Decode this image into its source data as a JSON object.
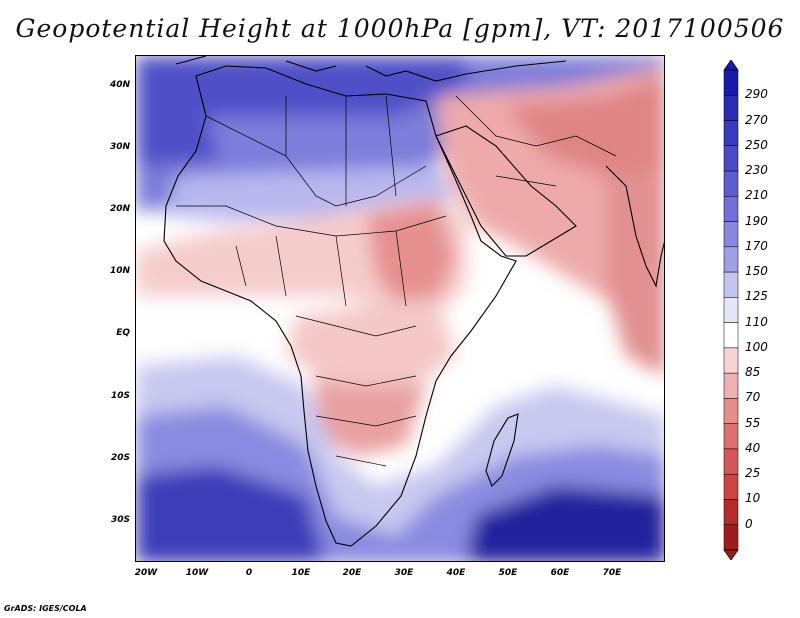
{
  "title": "Geopotential Height at 1000hPa [gpm], VT: 2017100506",
  "footer": "GrADS: IGES/COLA",
  "axes": {
    "y_ticks": [
      "40N",
      "30N",
      "20N",
      "10N",
      "EQ",
      "10S",
      "20S",
      "30S"
    ],
    "x_ticks": [
      "20W",
      "10W",
      "0",
      "10E",
      "20E",
      "30E",
      "40E",
      "50E",
      "60E",
      "70E"
    ]
  },
  "colorbar": {
    "levels": [
      "290",
      "270",
      "250",
      "230",
      "210",
      "190",
      "170",
      "150",
      "125",
      "110",
      "100",
      "85",
      "70",
      "55",
      "40",
      "25",
      "10",
      "0"
    ],
    "colors": [
      "#1a1aa8",
      "#2b2bb4",
      "#3a3abf",
      "#4b4bc8",
      "#5d5dd0",
      "#7070d8",
      "#8787df",
      "#a0a0e7",
      "#c4c4f0",
      "#e6e6f8",
      "#ffffff",
      "#f7d4d4",
      "#eeb0b0",
      "#e58e8e",
      "#dd7070",
      "#d55858",
      "#cc4444",
      "#b52a2a",
      "#a01b1b"
    ]
  },
  "colors": {
    "deep_blue": "#2020a0",
    "blue": "#6a6ad6",
    "light_blue": "#c8c8f0",
    "white": "#ffffff",
    "light_red": "#f4c4c4",
    "red": "#e08080",
    "coast": "#000000"
  }
}
